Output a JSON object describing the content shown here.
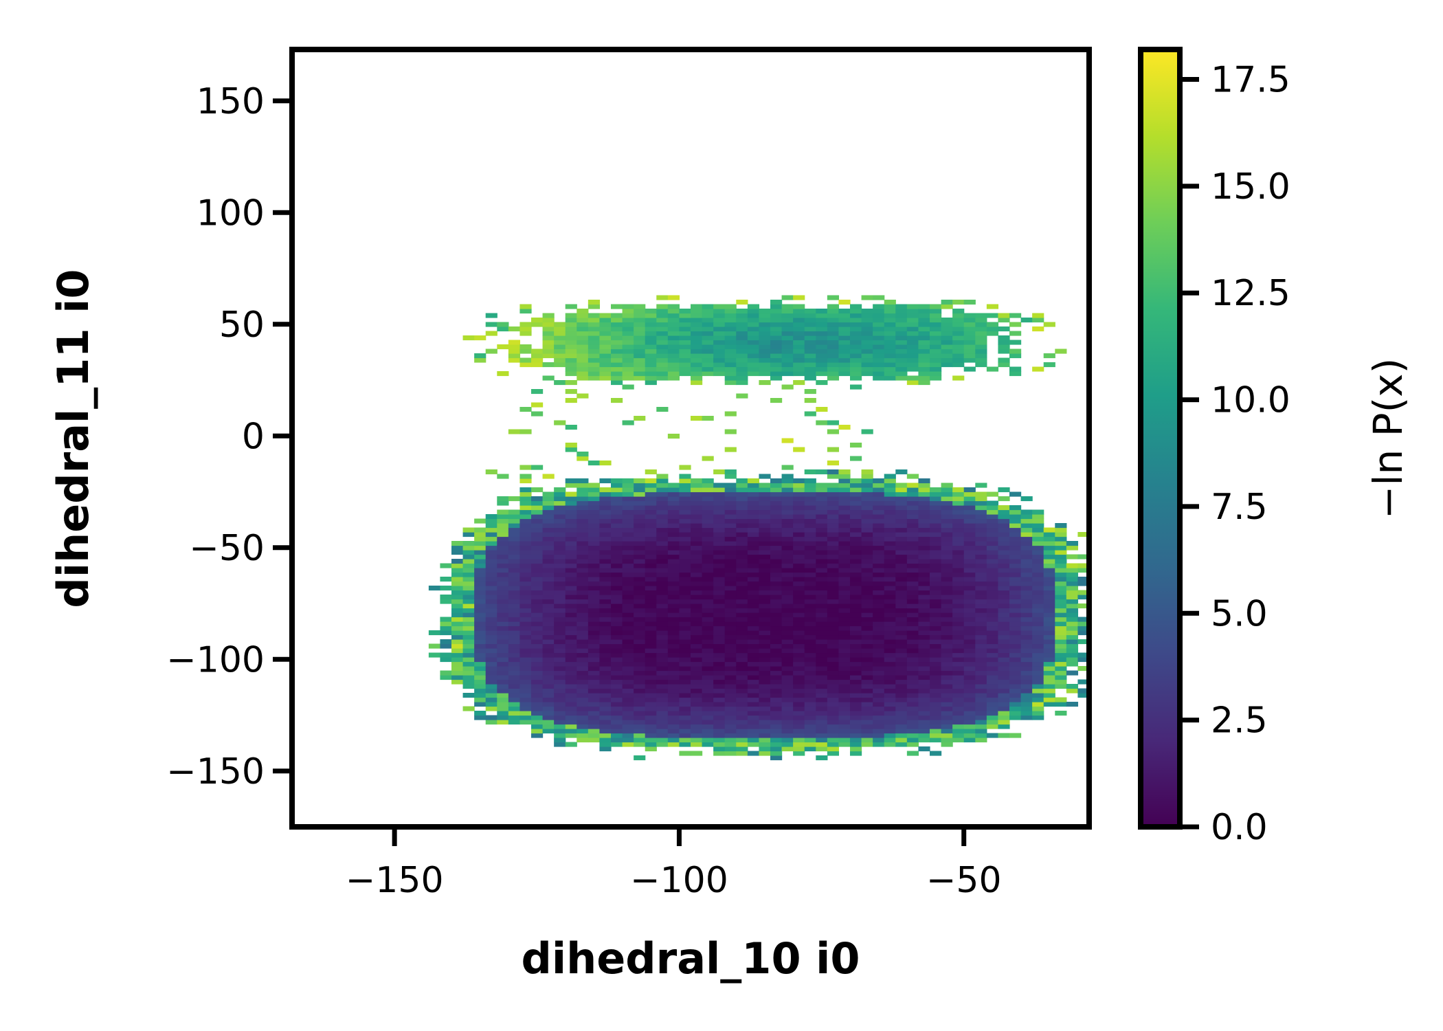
{
  "chart_data": {
    "type": "heatmap",
    "xlabel": "dihedral_10 i0",
    "ylabel": "dihedral_11 i0",
    "colorbar_label": "−ln P(x)",
    "colormap": "viridis",
    "xlim": [
      -168,
      -28
    ],
    "ylim": [
      -175,
      173
    ],
    "clim": [
      0.0,
      18.2
    ],
    "x_ticks": [
      -150,
      -100,
      -50
    ],
    "x_tick_labels": [
      "−150",
      "−100",
      "−50"
    ],
    "y_ticks": [
      150,
      100,
      50,
      0,
      -50,
      -100,
      -150
    ],
    "y_tick_labels": [
      "150",
      "100",
      "50",
      "0",
      "−50",
      "−100",
      "−150"
    ],
    "colorbar_ticks": [
      0.0,
      2.5,
      5.0,
      7.5,
      10.0,
      12.5,
      15.0,
      17.5
    ],
    "colorbar_tick_labels": [
      "0.0",
      "2.5",
      "5.0",
      "7.5",
      "10.0",
      "12.5",
      "15.0",
      "17.5"
    ],
    "bin_size": 2,
    "basins": [
      {
        "x_center": -85,
        "y_center": -80,
        "x_halfwidth": 55,
        "y_halfwidth": 60,
        "minimum_value": 0.0
      },
      {
        "x_center": -85,
        "y_center": 42,
        "x_halfwidth": 45,
        "y_halfwidth": 18,
        "minimum_value": 7.5
      }
    ]
  },
  "colors": {
    "viridis_stops": [
      "#440154",
      "#482878",
      "#3e4989",
      "#31688e",
      "#26828e",
      "#1f9e89",
      "#35b779",
      "#6ece58",
      "#b5de2b",
      "#fde725"
    ]
  }
}
